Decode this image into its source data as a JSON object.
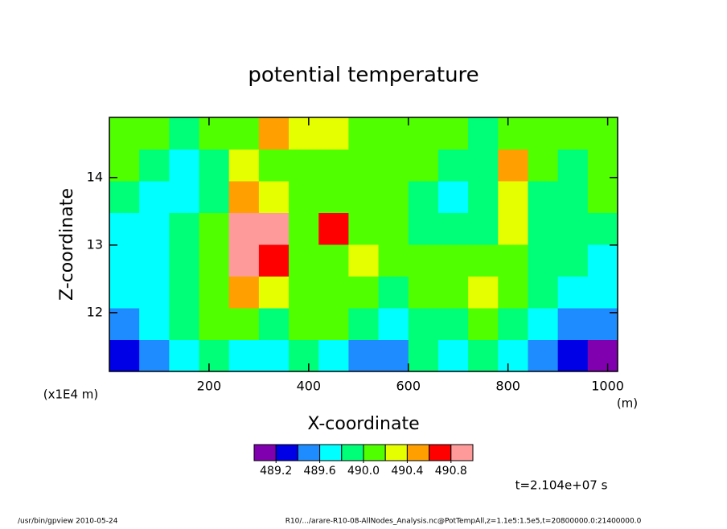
{
  "chart_data": {
    "type": "contour",
    "title": "potential temperature",
    "x_label": "X-coordinate",
    "x_unit": "(m)",
    "y_label": "Z-coordinate",
    "y_unit": "(x1E4 m)",
    "xlim": [
      0,
      1020
    ],
    "xticks": [
      200,
      400,
      600,
      800,
      1000
    ],
    "ylim": [
      11.13,
      14.89
    ],
    "yticks": [
      12,
      13,
      14
    ],
    "x": [
      30,
      90,
      150,
      210,
      270,
      330,
      390,
      450,
      510,
      570,
      630,
      690,
      750,
      810,
      870,
      930,
      990
    ],
    "y": [
      11.365,
      11.835,
      12.305,
      12.775,
      13.245,
      13.715,
      14.185,
      14.655
    ],
    "z": [
      [
        489.3,
        489.5,
        489.7,
        489.9,
        489.7,
        489.7,
        489.9,
        489.7,
        489.5,
        489.5,
        489.9,
        489.7,
        489.9,
        489.7,
        489.5,
        489.3,
        489.1
      ],
      [
        489.5,
        489.7,
        489.9,
        490.1,
        490.1,
        489.9,
        490.1,
        490.1,
        489.9,
        489.7,
        489.9,
        489.9,
        490.1,
        489.9,
        489.7,
        489.5,
        489.5
      ],
      [
        489.7,
        489.7,
        489.9,
        490.1,
        490.5,
        490.3,
        490.1,
        490.1,
        490.1,
        489.9,
        490.1,
        490.1,
        490.3,
        490.1,
        489.9,
        489.7,
        489.7
      ],
      [
        489.7,
        489.7,
        489.9,
        490.1,
        490.9,
        490.7,
        490.1,
        490.1,
        490.3,
        490.1,
        490.1,
        490.1,
        490.1,
        490.1,
        489.9,
        489.9,
        489.7
      ],
      [
        489.7,
        489.7,
        489.9,
        490.1,
        490.9,
        490.9,
        490.1,
        490.7,
        490.1,
        490.1,
        489.9,
        489.9,
        489.9,
        490.3,
        489.9,
        489.9,
        489.9
      ],
      [
        489.9,
        489.7,
        489.7,
        489.9,
        490.5,
        490.3,
        490.1,
        490.1,
        490.1,
        490.1,
        489.9,
        489.7,
        489.9,
        490.3,
        489.9,
        489.9,
        490.1
      ],
      [
        490.1,
        489.9,
        489.7,
        489.9,
        490.3,
        490.1,
        490.1,
        490.1,
        490.1,
        490.1,
        490.1,
        489.9,
        489.9,
        490.5,
        490.1,
        489.9,
        490.1
      ],
      [
        490.1,
        490.1,
        489.9,
        490.1,
        490.1,
        490.5,
        490.3,
        490.3,
        490.1,
        490.1,
        490.1,
        490.1,
        489.9,
        490.1,
        490.1,
        490.1,
        490.1
      ]
    ],
    "levels": [
      489.2,
      489.4,
      489.6,
      489.8,
      490.0,
      490.2,
      490.4,
      490.6,
      490.8
    ],
    "colors": [
      "#8000b0",
      "#0000e6",
      "#1e8cff",
      "#00ffff",
      "#00ff78",
      "#50ff00",
      "#e6ff00",
      "#ffa000",
      "#ff0000",
      "#ff9a9a"
    ],
    "colorbar_ticks": [
      489.2,
      489.6,
      {
        "value": 490.0,
        "label": "490.0"
      },
      490.4,
      490.8
    ],
    "time_label": "t=2.104e+07 s",
    "footer_left": "/usr/bin/gpview   2010-05-24",
    "footer_right": "R10/.../arare-R10-08-AllNodes_Analysis.nc@PotTempAll,z=1.1e5:1.5e5,t=20800000.0:21400000.0"
  }
}
